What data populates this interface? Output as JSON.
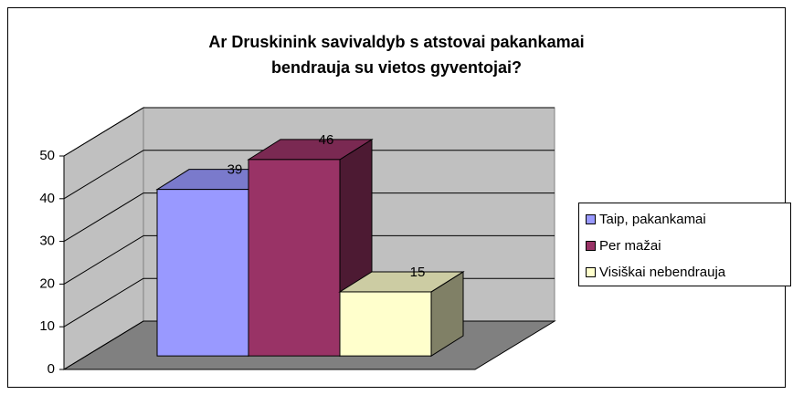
{
  "chart_data": {
    "type": "bar3d",
    "title": [
      "Ar Druskinink   savivaldyb  s atstovai pakankamai",
      "bendrauja su vietos gyventojai?"
    ],
    "series": [
      {
        "name": "Taip, pakankamai",
        "color": "#9999ff",
        "values": [
          39
        ]
      },
      {
        "name": "Per mažai",
        "color": "#993366",
        "values": [
          46
        ]
      },
      {
        "name": "Visiškai nebendrauja",
        "color": "#ffffcc",
        "values": [
          15
        ]
      }
    ],
    "ylim": [
      0,
      50
    ],
    "yticks": [
      0,
      10,
      20,
      30,
      40,
      50
    ],
    "grid": true,
    "legend": "right"
  }
}
